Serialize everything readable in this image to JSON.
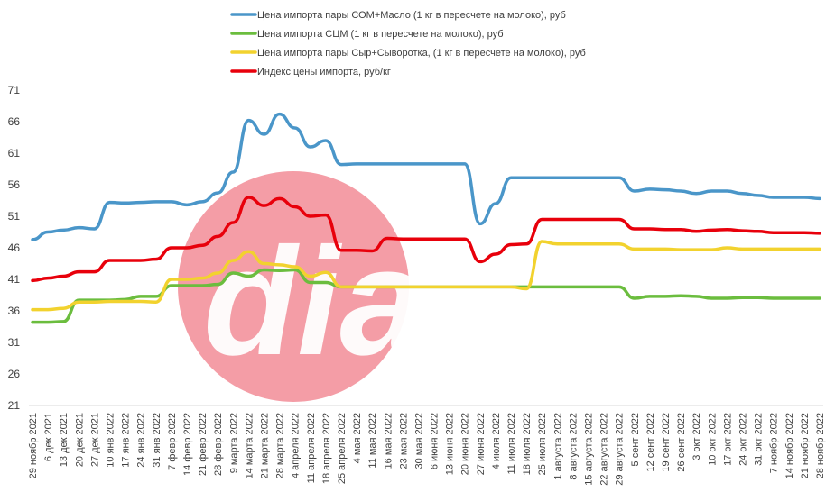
{
  "chart_data": {
    "type": "line",
    "title": "",
    "xlabel": "",
    "ylabel": "",
    "ylim": [
      21,
      71
    ],
    "yticks": [
      21,
      26,
      31,
      36,
      41,
      46,
      51,
      56,
      61,
      66,
      71
    ],
    "grid": false,
    "legend_position": "top",
    "categories": [
      "29 ноябр 2021",
      "6 дек 2021",
      "13 дек 2021",
      "20 дек 2021",
      "27 дек 2021",
      "10 янв 2022",
      "17 янв 2022",
      "24 янв 2022",
      "31 янв 2022",
      "7 февр 2022",
      "14 февр 2022",
      "21 февр 2022",
      "28 февр 2022",
      "9 марта 2022",
      "14 марта 2022",
      "21 марта 2022",
      "28 марта 2022",
      "4 апреля 2022",
      "11 апреля 2022",
      "18 апреля 2022",
      "25 апреля 2022",
      "4 мая 2022",
      "11 мая 2022",
      "16 мая 2022",
      "23 мая 2022",
      "30 мая 2022",
      "6 июня 2022",
      "13 июня 2022",
      "20 июня 2022",
      "27 июня 2022",
      "4 июля 2022",
      "11 июля 2022",
      "18 июля 2022",
      "25 июля 2022",
      "1 августа 2022",
      "8 августа 2022",
      "15 августа 2022",
      "22 августа 2022",
      "29 августа 2022",
      "5 сент 2022",
      "12 сент 2022",
      "19 сент 2022",
      "26 сент 2022",
      "3 окт 2022",
      "10 окт 2022",
      "17 окт 2022",
      "24 окт 2022",
      "31 окт 2022",
      "7 ноябр 2022",
      "14 ноябр 2022",
      "21 ноябр 2022",
      "28 ноябр 2022"
    ],
    "series": [
      {
        "name": "Цена импорта пары СОМ+Масло  (1 кг в пересчете на молоко), руб",
        "color": "#4a96c9",
        "values": [
          47.3,
          48.5,
          48.8,
          49.2,
          49.0,
          53.2,
          53.1,
          53.2,
          53.3,
          53.3,
          52.8,
          53.3,
          54.7,
          58.0,
          66.2,
          64.0,
          67.2,
          65.0,
          62.0,
          63.0,
          59.2,
          59.3,
          59.3,
          59.3,
          59.3,
          59.3,
          59.3,
          59.3,
          59.3,
          49.8,
          53.0,
          57.1,
          57.1,
          57.1,
          57.1,
          57.1,
          57.1,
          57.1,
          57.1,
          55.0,
          55.3,
          55.2,
          55.0,
          54.6,
          55.0,
          55.0,
          54.6,
          54.3,
          54.0,
          54.0,
          54.0,
          53.8
        ]
      },
      {
        "name": "Цена импорта СЦМ (1 кг в пересчете на молоко), руб",
        "color": "#6bbd3e",
        "values": [
          34.2,
          34.2,
          34.3,
          37.7,
          37.7,
          37.7,
          37.8,
          38.3,
          38.3,
          40.0,
          40.0,
          40.0,
          40.2,
          42.0,
          41.5,
          42.5,
          42.4,
          42.5,
          40.5,
          40.5,
          39.8,
          39.8,
          39.8,
          39.8,
          39.8,
          39.8,
          39.8,
          39.8,
          39.8,
          39.8,
          39.8,
          39.8,
          39.8,
          39.8,
          39.8,
          39.8,
          39.8,
          39.8,
          39.8,
          38.0,
          38.3,
          38.3,
          38.4,
          38.3,
          38.0,
          38.0,
          38.1,
          38.1,
          38.0,
          38.0,
          38.0,
          38.0
        ]
      },
      {
        "name": "Цена импорта пары Сыр+Сыворотка, (1 кг в пересчете на молоко), руб",
        "color": "#f2d22e",
        "values": [
          36.2,
          36.2,
          36.4,
          37.4,
          37.4,
          37.5,
          37.5,
          37.5,
          37.4,
          41.0,
          41.0,
          41.2,
          42.0,
          44.0,
          45.4,
          43.5,
          43.3,
          43.0,
          41.5,
          42.1,
          39.8,
          39.8,
          39.8,
          39.8,
          39.8,
          39.8,
          39.8,
          39.8,
          39.8,
          39.8,
          39.8,
          39.8,
          39.5,
          47.0,
          46.6,
          46.6,
          46.6,
          46.6,
          46.6,
          45.8,
          45.8,
          45.8,
          45.7,
          45.7,
          45.7,
          46.0,
          45.8,
          45.8,
          45.8,
          45.8,
          45.8,
          45.8
        ]
      },
      {
        "name": "Индекс цены импорта, руб/кг",
        "color": "#e8000b",
        "values": [
          40.8,
          41.2,
          41.5,
          42.2,
          42.2,
          44.0,
          44.0,
          44.0,
          44.2,
          46.0,
          46.0,
          46.4,
          47.8,
          50.0,
          54.0,
          52.7,
          53.8,
          52.5,
          51.0,
          51.2,
          45.6,
          45.6,
          45.5,
          47.5,
          47.4,
          47.4,
          47.4,
          47.4,
          47.4,
          43.8,
          45.0,
          46.5,
          46.6,
          50.5,
          50.5,
          50.5,
          50.5,
          50.5,
          50.5,
          49.0,
          49.0,
          48.9,
          48.9,
          48.6,
          48.8,
          48.9,
          48.7,
          48.6,
          48.4,
          48.4,
          48.4,
          48.3
        ]
      }
    ]
  },
  "watermark": {
    "text": "dia",
    "circle_color": "#f28c96",
    "text_color": "#ffffff"
  }
}
